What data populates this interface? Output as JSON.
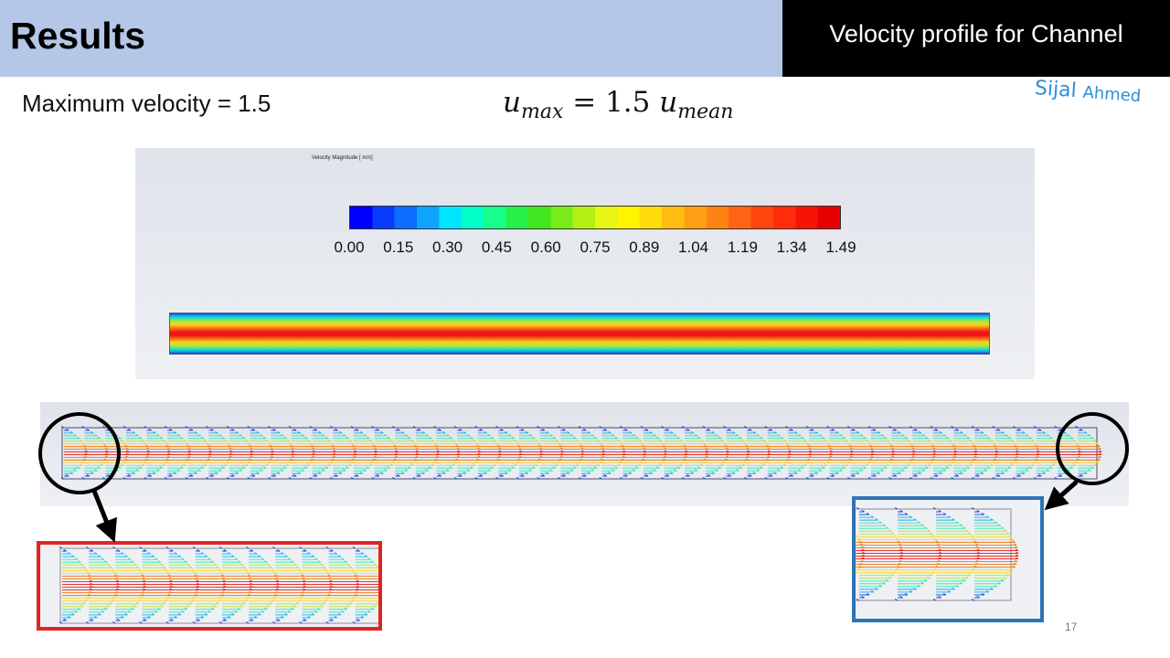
{
  "header": {
    "title": "Results",
    "subtitle": "Velocity profile for Channel"
  },
  "slide": {
    "max_velocity_text": "Maximum velocity = 1.5",
    "formula": {
      "lhs_var": "u",
      "lhs_sub": "max",
      "operator": "=",
      "coefficient": "1.5",
      "rhs_var": "u",
      "rhs_sub": "mean"
    },
    "signature": {
      "part1": "Sijal",
      "part2": "Ahmed"
    },
    "slide_number": "17"
  },
  "contour": {
    "colorbar_title": "Velocity Magnitude [ m/s]",
    "colorbar_labels": [
      "0.00",
      "0.15",
      "0.30",
      "0.45",
      "0.60",
      "0.75",
      "0.89",
      "1.04",
      "1.19",
      "1.34",
      "1.49"
    ],
    "colorbar_colors": [
      "#0000ff",
      "#0a3cff",
      "#0c6eff",
      "#0fa4ff",
      "#00e6ff",
      "#00ffc8",
      "#19ff8c",
      "#28f04b",
      "#41e61e",
      "#78eb19",
      "#b4f014",
      "#e6f514",
      "#fff500",
      "#ffdc0a",
      "#ffbe0f",
      "#ffa014",
      "#ff8214",
      "#ff6414",
      "#ff460f",
      "#ff2d0a",
      "#f51405",
      "#e60000"
    ]
  },
  "vectors": {
    "arrow_sets": 50,
    "ring_colors": [
      "#ee1a14",
      "#f67a16",
      "#f5d81a",
      "#b6e43e",
      "#2ce6a8",
      "#11b0ee",
      "#1040d8"
    ]
  },
  "colors": {
    "header_left_bg": "#b4c7e7",
    "header_right_bg": "#000000",
    "red_box": "#e02424",
    "blue_box": "#2e75b6",
    "signature": "#2e8fd6"
  }
}
